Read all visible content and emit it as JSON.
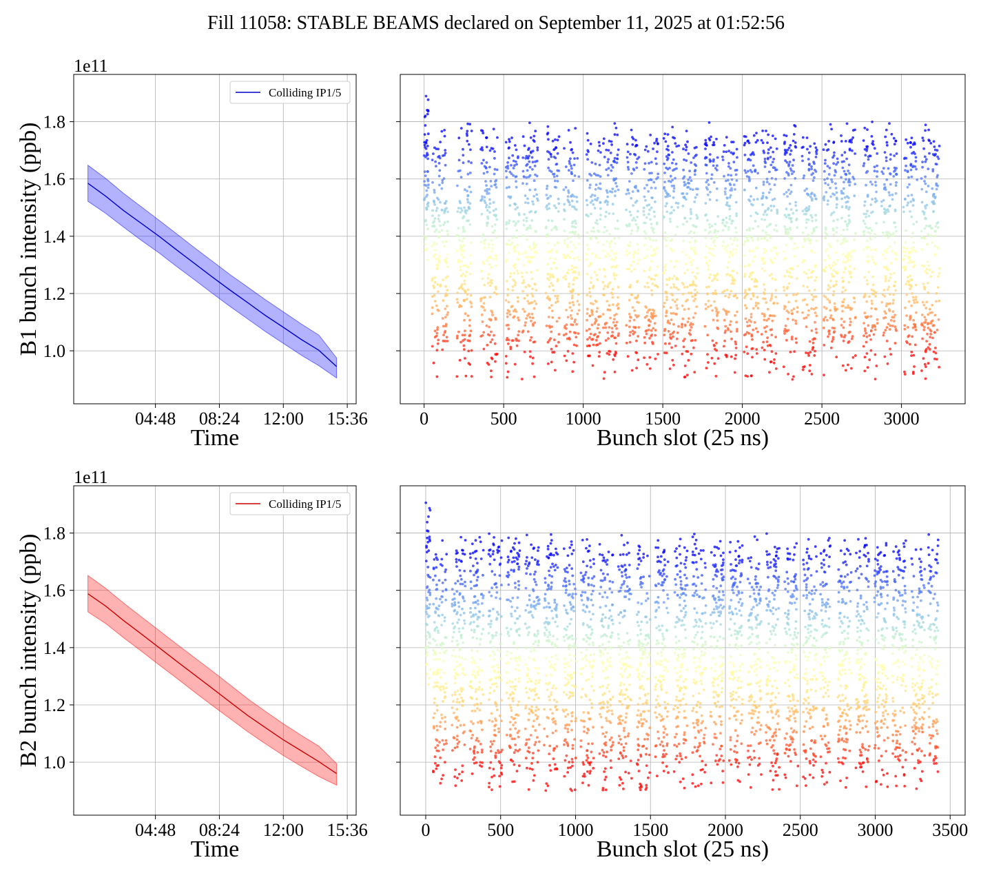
{
  "suptitle": "Fill 11058: STABLE BEAMS declared on September 11, 2025 at 01:52:56",
  "chart_data": [
    {
      "id": "b1_time",
      "type": "line",
      "ylabel": "B1 bunch intensity (ppb)",
      "xlabel": "Time",
      "y_offset_text": "1e11",
      "x_unit": "hours",
      "xlim": [
        0.2,
        16.1
      ],
      "x_ticks": [
        4.8,
        8.4,
        12.0,
        15.6
      ],
      "x_tick_labels": [
        "04:48",
        "08:24",
        "12:00",
        "15:36"
      ],
      "ylim": [
        0.815,
        1.965
      ],
      "y_ticks": [
        1.0,
        1.2,
        1.4,
        1.6,
        1.8
      ],
      "y_tick_labels": [
        "1.0",
        "1.2",
        "1.4",
        "1.6",
        "1.8"
      ],
      "grid": true,
      "legend": {
        "position": "top-right",
        "entries": [
          "Colliding IP1/5"
        ]
      },
      "color": "#0000cc",
      "band_color": "#0000ff",
      "series": [
        {
          "name": "Colliding IP1/5",
          "x": [
            1.0,
            2.0,
            3.0,
            4.0,
            5.0,
            6.0,
            7.0,
            8.0,
            9.0,
            10.0,
            11.0,
            12.0,
            13.0,
            14.0,
            15.0
          ],
          "y": [
            1.585,
            1.54,
            1.49,
            1.445,
            1.4,
            1.352,
            1.305,
            1.258,
            1.212,
            1.168,
            1.123,
            1.082,
            1.04,
            1.002,
            0.945
          ],
          "band_lower": [
            1.522,
            1.48,
            1.432,
            1.386,
            1.342,
            1.294,
            1.248,
            1.201,
            1.155,
            1.111,
            1.067,
            1.026,
            0.985,
            0.948,
            0.905
          ],
          "band_upper": [
            1.648,
            1.602,
            1.55,
            1.503,
            1.456,
            1.408,
            1.36,
            1.313,
            1.266,
            1.222,
            1.178,
            1.136,
            1.094,
            1.055,
            0.975
          ]
        }
      ]
    },
    {
      "id": "b1_slots",
      "type": "scatter",
      "xlabel": "Bunch slot (25 ns)",
      "xlim": [
        -150,
        3400
      ],
      "x_ticks": [
        0,
        500,
        1000,
        1500,
        2000,
        2500,
        3000
      ],
      "x_tick_labels": [
        "0",
        "500",
        "1000",
        "1500",
        "2000",
        "2500",
        "3000"
      ],
      "ylim": [
        0.815,
        1.965
      ],
      "y_ticks": [
        1.0,
        1.2,
        1.4,
        1.6,
        1.8
      ],
      "grid": true,
      "colormap": "rainbow (red = low intensity, violet = high intensity)",
      "pilot": {
        "x": [
          0,
          30
        ],
        "y": [
          1.28,
          1.9
        ]
      },
      "trains": [
        [
          50,
          150
        ],
        [
          205,
          300
        ],
        [
          355,
          460
        ],
        [
          515,
          600
        ],
        [
          615,
          715
        ],
        [
          765,
          850
        ],
        [
          875,
          975
        ],
        [
          1020,
          1110
        ],
        [
          1125,
          1225
        ],
        [
          1270,
          1350
        ],
        [
          1380,
          1470
        ],
        [
          1505,
          1600
        ],
        [
          1620,
          1720
        ],
        [
          1765,
          1850
        ],
        [
          1875,
          1970
        ],
        [
          2010,
          2100
        ],
        [
          2120,
          2220
        ],
        [
          2260,
          2350
        ],
        [
          2375,
          2470
        ],
        [
          2510,
          2600
        ],
        [
          2620,
          2715
        ],
        [
          2760,
          2850
        ],
        [
          2875,
          2970
        ],
        [
          3010,
          3100
        ],
        [
          3125,
          3240
        ]
      ],
      "train_band": {
        "y_low": 0.9,
        "y_high": 1.78
      },
      "series": [
        {
          "name": "",
          "mode": "bunch-by-bunch",
          "note_values": [
            0.87,
            1.0,
            1.2,
            1.4,
            1.6,
            1.78
          ]
        }
      ]
    },
    {
      "id": "b2_time",
      "type": "line",
      "ylabel": "B2 bunch intensity (ppb)",
      "xlabel": "Time",
      "y_offset_text": "1e11",
      "x_unit": "hours",
      "xlim": [
        0.2,
        16.1
      ],
      "x_ticks": [
        4.8,
        8.4,
        12.0,
        15.6
      ],
      "x_tick_labels": [
        "04:48",
        "08:24",
        "12:00",
        "15:36"
      ],
      "ylim": [
        0.815,
        1.965
      ],
      "y_ticks": [
        1.0,
        1.2,
        1.4,
        1.6,
        1.8
      ],
      "y_tick_labels": [
        "1.0",
        "1.2",
        "1.4",
        "1.6",
        "1.8"
      ],
      "grid": true,
      "legend": {
        "position": "top-right",
        "entries": [
          "Colliding IP1/5"
        ]
      },
      "color": "#cc0000",
      "band_color": "#ff0000",
      "series": [
        {
          "name": "Colliding IP1/5",
          "x": [
            1.0,
            2.0,
            3.0,
            4.0,
            5.0,
            6.0,
            7.0,
            8.0,
            9.0,
            10.0,
            11.0,
            12.0,
            13.0,
            14.0,
            15.0
          ],
          "y": [
            1.588,
            1.545,
            1.495,
            1.448,
            1.4,
            1.352,
            1.305,
            1.258,
            1.21,
            1.163,
            1.12,
            1.078,
            1.04,
            1.002,
            0.96
          ],
          "band_lower": [
            1.525,
            1.484,
            1.435,
            1.388,
            1.34,
            1.293,
            1.245,
            1.198,
            1.152,
            1.106,
            1.064,
            1.023,
            0.986,
            0.95,
            0.92
          ],
          "band_upper": [
            1.652,
            1.607,
            1.556,
            1.508,
            1.46,
            1.412,
            1.365,
            1.318,
            1.27,
            1.221,
            1.177,
            1.134,
            1.094,
            1.056,
            0.995
          ]
        }
      ]
    },
    {
      "id": "b2_slots",
      "type": "scatter",
      "xlabel": "Bunch slot (25 ns)",
      "xlim": [
        -170,
        3600
      ],
      "x_ticks": [
        0,
        500,
        1000,
        1500,
        2000,
        2500,
        3000,
        3500
      ],
      "x_tick_labels": [
        "0",
        "500",
        "1000",
        "1500",
        "2000",
        "2500",
        "3000",
        "3500"
      ],
      "ylim": [
        0.815,
        1.965
      ],
      "y_ticks": [
        1.0,
        1.2,
        1.4,
        1.6,
        1.8
      ],
      "grid": true,
      "colormap": "rainbow (red = low intensity, violet = high intensity)",
      "pilot": {
        "x": [
          0,
          30
        ],
        "y": [
          1.25,
          1.92
        ]
      },
      "trains": [
        [
          50,
          140
        ],
        [
          175,
          265
        ],
        [
          295,
          385
        ],
        [
          420,
          510
        ],
        [
          540,
          630
        ],
        [
          665,
          760
        ],
        [
          790,
          880
        ],
        [
          915,
          1005
        ],
        [
          1035,
          1125
        ],
        [
          1160,
          1250
        ],
        [
          1285,
          1375
        ],
        [
          1410,
          1500
        ],
        [
          1530,
          1620
        ],
        [
          1655,
          1745
        ],
        [
          1780,
          1870
        ],
        [
          1900,
          1990
        ],
        [
          2025,
          2115
        ],
        [
          2150,
          2240
        ],
        [
          2270,
          2360
        ],
        [
          2395,
          2485
        ],
        [
          2520,
          2610
        ],
        [
          2635,
          2700
        ],
        [
          2750,
          2840
        ],
        [
          2870,
          2960
        ],
        [
          2995,
          3085
        ],
        [
          3115,
          3205
        ],
        [
          3240,
          3330
        ],
        [
          3355,
          3420
        ]
      ],
      "train_band": {
        "y_low": 0.9,
        "y_high": 1.78
      },
      "series": [
        {
          "name": "",
          "mode": "bunch-by-bunch",
          "note_values": [
            0.87,
            1.0,
            1.2,
            1.4,
            1.6,
            1.78
          ]
        }
      ]
    }
  ]
}
